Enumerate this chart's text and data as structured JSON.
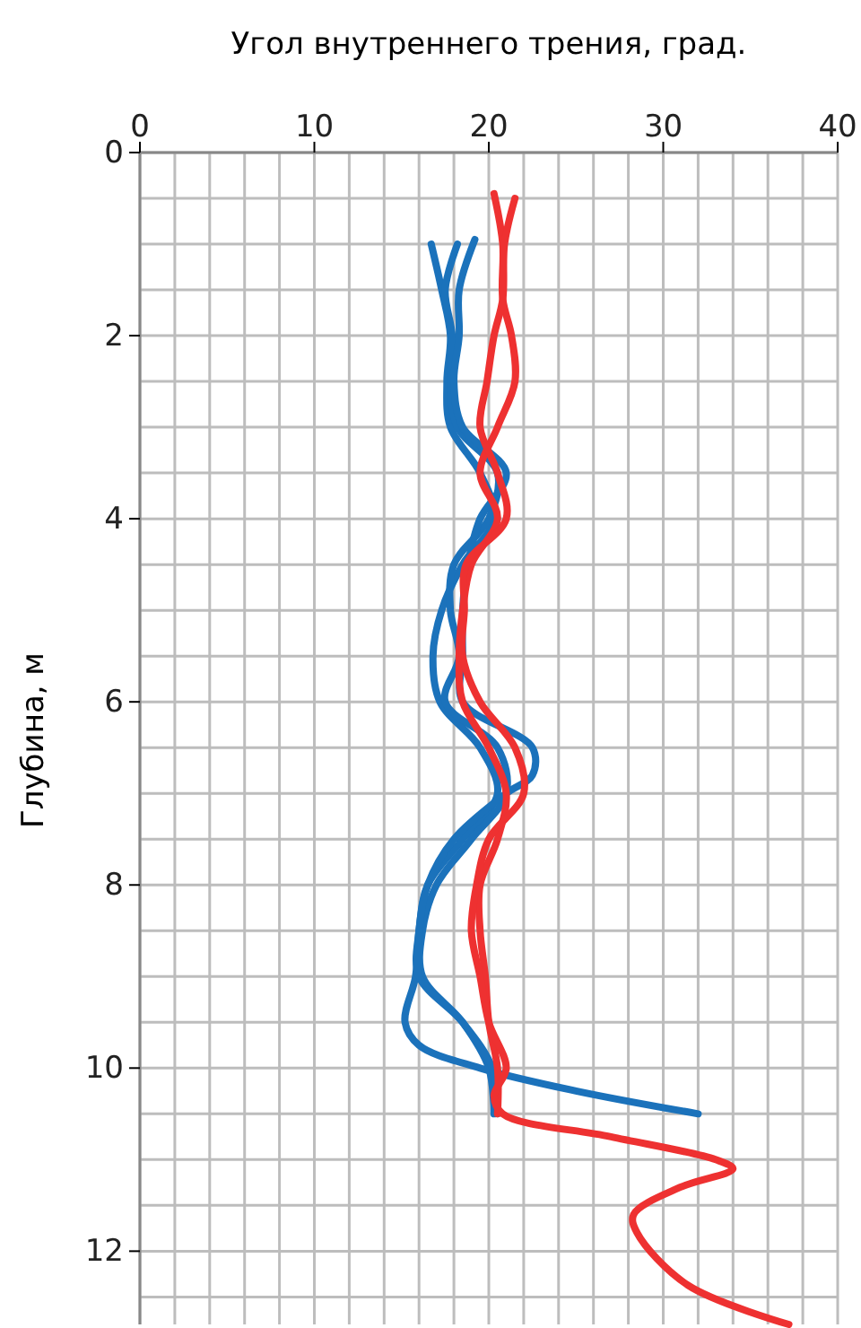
{
  "chart_data": {
    "type": "line",
    "xlabel": "Угол внутреннего трения, град.",
    "ylabel": "Глубина, м",
    "xlim": [
      0,
      40
    ],
    "ylim": [
      12.8,
      0
    ],
    "xticks": [
      0,
      {
        "value": 2,
        "label": null
      },
      {
        "value": 4,
        "label": null
      },
      {
        "value": 6,
        "label": null
      },
      {
        "value": 8,
        "label": null
      },
      10,
      {
        "value": 12,
        "label": null
      },
      {
        "value": 14,
        "label": null
      },
      {
        "value": 16,
        "label": null
      },
      {
        "value": 18,
        "label": null
      },
      20,
      {
        "value": 22,
        "label": null
      },
      {
        "value": 24,
        "label": null
      },
      {
        "value": 26,
        "label": null
      },
      {
        "value": 28,
        "label": null
      },
      30,
      {
        "value": 32,
        "label": null
      },
      {
        "value": 34,
        "label": null
      },
      {
        "value": 36,
        "label": null
      },
      {
        "value": 38,
        "label": null
      },
      40
    ],
    "yticks": [
      0,
      {
        "value": 0.5,
        "label": null
      },
      {
        "value": 1,
        "label": null
      },
      {
        "value": 1.5,
        "label": null
      },
      2,
      {
        "value": 2.5,
        "label": null
      },
      {
        "value": 3,
        "label": null
      },
      {
        "value": 3.5,
        "label": null
      },
      4,
      {
        "value": 4.5,
        "label": null
      },
      {
        "value": 5,
        "label": null
      },
      {
        "value": 5.5,
        "label": null
      },
      6,
      {
        "value": 6.5,
        "label": null
      },
      {
        "value": 7,
        "label": null
      },
      {
        "value": 7.5,
        "label": null
      },
      8,
      {
        "value": 8.5,
        "label": null
      },
      {
        "value": 9,
        "label": null
      },
      {
        "value": 9.5,
        "label": null
      },
      10,
      {
        "value": 10.5,
        "label": null
      },
      {
        "value": 11,
        "label": null
      },
      {
        "value": 11.5,
        "label": null
      },
      12,
      {
        "value": 12.5,
        "label": null
      }
    ],
    "grid": true,
    "line_style": "solid",
    "marker": "none",
    "series": [
      {
        "color": "#1b72bb",
        "x": [
          16.7,
          17.3,
          17.8,
          17.6,
          17.8,
          19.5,
          20.3,
          18.5,
          17.3,
          16.8,
          17.2,
          19.5,
          20.5,
          18.5,
          16.5,
          16,
          15.8,
          15.2,
          16,
          19.5,
          25,
          32
        ],
        "values": [
          1,
          1.5,
          2,
          2.5,
          3,
          3.5,
          4,
          4.5,
          5,
          5.5,
          6,
          6.5,
          7,
          7.5,
          8,
          8.5,
          9,
          9.5,
          9.75,
          10,
          10.25,
          10.5
        ]
      },
      {
        "color": "#1b72bb",
        "x": [
          18.2,
          17.5,
          17.9,
          17.8,
          18.2,
          20.5,
          20,
          18,
          17.8,
          18.3,
          17.5,
          20.5,
          21,
          19,
          17,
          16.2,
          16.2,
          18.5,
          20,
          20.3
        ],
        "values": [
          1,
          1.5,
          2,
          2.5,
          3,
          3.5,
          4,
          4.5,
          5,
          5.5,
          6,
          6.5,
          7,
          7.5,
          8,
          8.5,
          9,
          9.5,
          10,
          10.5
        ]
      },
      {
        "color": "#1b72bb",
        "x": [
          19.2,
          18.3,
          18.3,
          18,
          18.5,
          21,
          19.5,
          18.8,
          18.5,
          18.5,
          18.5,
          22.5,
          22.5,
          21,
          18,
          16.5,
          16,
          16,
          18.5,
          20.2,
          20.5
        ],
        "values": [
          0.95,
          1.5,
          2,
          2.5,
          3,
          3.5,
          4,
          4.5,
          5,
          5.5,
          6,
          6.5,
          6.8,
          7,
          7.5,
          8,
          8.5,
          9,
          9.5,
          10,
          10.5
        ]
      },
      {
        "color": "#ee3131",
        "x": [
          20.3,
          20.8,
          20.8,
          21.3,
          21.5,
          20.5,
          19.5,
          20.5,
          19,
          18.5,
          18.3,
          18.5,
          20,
          21,
          20.5,
          19.5,
          19.5,
          19.8,
          20,
          20.5,
          20.5
        ],
        "values": [
          0.45,
          1,
          1.6,
          2,
          2.5,
          3,
          3.5,
          4,
          4.5,
          5,
          5.5,
          6,
          6.5,
          7,
          7.5,
          8,
          8.5,
          9,
          9.5,
          10,
          10.5
        ]
      },
      {
        "color": "#ee3131",
        "x": [
          21.5,
          20.9,
          20.8,
          20.3,
          19.9,
          19.5,
          20.5,
          21,
          18.7,
          18.6,
          18.5,
          19.5,
          21.5,
          22,
          20,
          19.3,
          19,
          19.5,
          20,
          21,
          20.3,
          20.8,
          27,
          33,
          34,
          31,
          28.3,
          28.5,
          31.4,
          37.2
        ],
        "values": [
          0.5,
          1,
          1.6,
          2,
          2.5,
          3,
          3.5,
          4,
          4.5,
          5,
          5.5,
          6,
          6.5,
          7,
          7.5,
          8,
          8.5,
          9,
          9.5,
          10,
          10.3,
          10.5,
          10.75,
          11,
          11.1,
          11.3,
          11.6,
          11.8,
          12.37,
          12.8
        ]
      }
    ]
  }
}
